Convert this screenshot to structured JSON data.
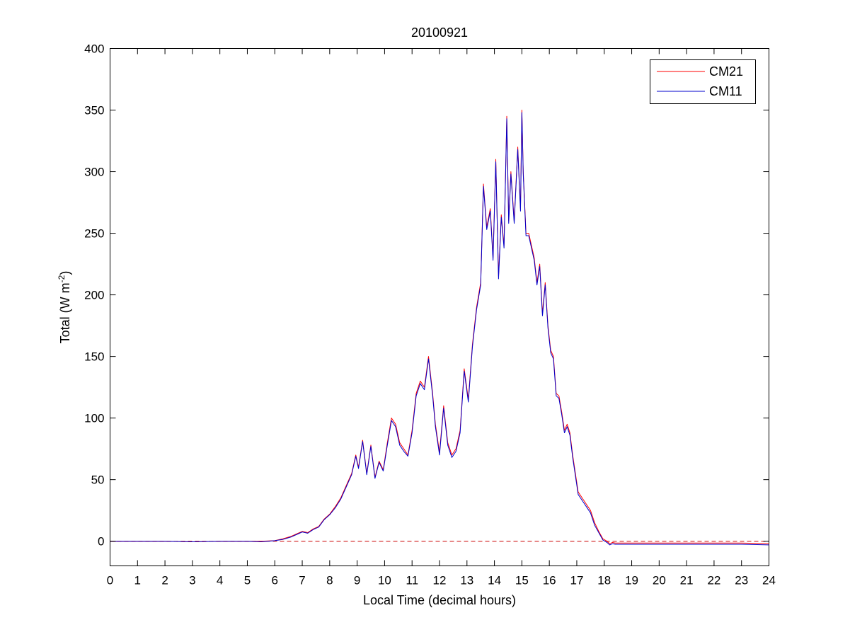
{
  "chart_data": {
    "type": "line",
    "title": "20100921",
    "xlabel": "Local Time (decimal hours)",
    "ylabel_main": "Total (W m",
    "ylabel_sup": "-2",
    "ylabel_close": ")",
    "xlim": [
      0,
      24
    ],
    "ylim": [
      -20,
      400
    ],
    "xticks": [
      "0",
      "1",
      "2",
      "3",
      "4",
      "5",
      "6",
      "7",
      "8",
      "9",
      "10",
      "11",
      "12",
      "13",
      "14",
      "15",
      "16",
      "17",
      "18",
      "19",
      "20",
      "21",
      "22",
      "23",
      "24"
    ],
    "yticks": [
      "0",
      "50",
      "100",
      "150",
      "200",
      "250",
      "300",
      "350",
      "400"
    ],
    "grid": false,
    "legend_position": "top-right",
    "zero_line": {
      "y": 0,
      "style": "dashed",
      "color": "#cc0000"
    },
    "x": [
      0,
      1,
      2,
      3,
      4,
      5,
      5.5,
      6,
      6.3,
      6.6,
      6.8,
      7.0,
      7.2,
      7.4,
      7.6,
      7.8,
      8.0,
      8.2,
      8.4,
      8.6,
      8.8,
      8.95,
      9.05,
      9.2,
      9.35,
      9.5,
      9.65,
      9.8,
      9.95,
      10.1,
      10.25,
      10.4,
      10.55,
      10.7,
      10.85,
      11.0,
      11.15,
      11.3,
      11.45,
      11.6,
      11.75,
      11.85,
      12.0,
      12.15,
      12.3,
      12.45,
      12.6,
      12.75,
      12.9,
      13.05,
      13.2,
      13.35,
      13.5,
      13.6,
      13.72,
      13.85,
      13.95,
      14.05,
      14.15,
      14.25,
      14.35,
      14.45,
      14.52,
      14.6,
      14.72,
      14.85,
      14.95,
      15.0,
      15.05,
      15.15,
      15.25,
      15.35,
      15.45,
      15.55,
      15.65,
      15.75,
      15.85,
      15.95,
      16.05,
      16.15,
      16.25,
      16.35,
      16.45,
      16.55,
      16.65,
      16.75,
      16.85,
      16.95,
      17.05,
      17.2,
      17.35,
      17.5,
      17.65,
      17.8,
      17.95,
      18.1,
      18.2,
      18.3,
      18.4,
      18.6,
      19,
      20,
      21,
      22,
      23,
      24
    ],
    "series": [
      {
        "name": "CM21",
        "color": "#ff0000",
        "values": [
          0,
          0,
          0,
          -0.5,
          0,
          0,
          0,
          0.5,
          2,
          4,
          6,
          8,
          7,
          10,
          12,
          18,
          22,
          28,
          35,
          45,
          55,
          70,
          60,
          82,
          55,
          78,
          52,
          65,
          58,
          80,
          100,
          95,
          80,
          75,
          70,
          90,
          120,
          130,
          125,
          150,
          120,
          95,
          72,
          110,
          80,
          70,
          75,
          90,
          140,
          115,
          160,
          190,
          210,
          290,
          255,
          270,
          230,
          310,
          215,
          265,
          240,
          345,
          260,
          300,
          260,
          320,
          270,
          350,
          300,
          250,
          250,
          240,
          230,
          210,
          225,
          185,
          210,
          175,
          155,
          150,
          120,
          118,
          105,
          90,
          95,
          88,
          70,
          55,
          40,
          35,
          30,
          25,
          15,
          8,
          2,
          0,
          -2,
          -1,
          -1.5,
          -1.5,
          -1.5,
          -1.5,
          -1.5,
          -1.5,
          -1.5,
          -2
        ]
      },
      {
        "name": "CM11",
        "color": "#0000cc",
        "values": [
          0,
          0,
          0,
          -0.5,
          0,
          0,
          -0.5,
          0.5,
          1.5,
          3.5,
          5.5,
          7.5,
          6.5,
          9.5,
          11.5,
          17.5,
          21.5,
          27,
          34,
          44,
          54,
          69,
          59,
          81,
          54,
          77,
          51,
          64,
          57,
          78,
          98,
          93,
          78,
          73,
          69,
          88,
          118,
          128,
          123,
          148,
          118,
          93,
          70,
          108,
          78,
          68,
          73,
          88,
          138,
          113,
          158,
          188,
          208,
          288,
          253,
          268,
          228,
          308,
          213,
          263,
          238,
          343,
          258,
          298,
          258,
          318,
          268,
          348,
          298,
          248,
          248,
          238,
          228,
          208,
          223,
          183,
          208,
          173,
          153,
          148,
          118,
          116,
          103,
          88,
          93,
          86,
          68,
          53,
          38,
          33,
          28,
          23,
          13,
          7,
          1,
          -1,
          -3,
          -2,
          -2.5,
          -2.5,
          -2.5,
          -2.5,
          -2.5,
          -2.5,
          -2.5,
          -3
        ]
      }
    ]
  }
}
